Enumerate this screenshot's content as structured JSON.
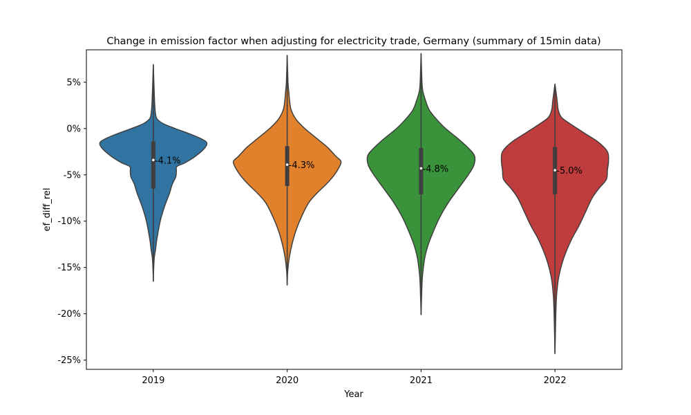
{
  "chart_data": {
    "type": "violin",
    "title": "Change in emission factor when adjusting for electricity trade, Germany (summary of 15min data)",
    "xlabel": "Year",
    "ylabel": "ef_diff_rel",
    "ylim": [
      -26,
      8.5
    ],
    "yticks": [
      5,
      0,
      -5,
      -10,
      -15,
      -20,
      -25
    ],
    "ytick_labels": [
      "5%",
      "0%",
      "-5%",
      "-10%",
      "-15%",
      "-20%",
      "-25%"
    ],
    "categories": [
      "2019",
      "2020",
      "2021",
      "2022"
    ],
    "violins": [
      {
        "category": "2019",
        "color": "#3274a1",
        "min": -16.5,
        "max": 6.9,
        "q1": -6.5,
        "q3": -1.4,
        "median": -3.4,
        "mean_label": "-4.1%",
        "density": [
          [
            -16.5,
            0.0
          ],
          [
            -15.5,
            0.4
          ],
          [
            -14,
            1.6
          ],
          [
            -13,
            4
          ],
          [
            -12,
            6
          ],
          [
            -10,
            12
          ],
          [
            -8.5,
            19
          ],
          [
            -7,
            28
          ],
          [
            -6,
            33
          ],
          [
            -5.2,
            39
          ],
          [
            -4.6,
            40
          ],
          [
            -4.1,
            41
          ],
          [
            -3.7,
            55
          ],
          [
            -3,
            73
          ],
          [
            -2.2,
            88
          ],
          [
            -1.6,
            93
          ],
          [
            -1.2,
            86
          ],
          [
            -0.6,
            64
          ],
          [
            0,
            38
          ],
          [
            0.5,
            18
          ],
          [
            1,
            7
          ],
          [
            1.5,
            4
          ],
          [
            2.5,
            2.5
          ],
          [
            4,
            1.5
          ],
          [
            6.9,
            0.0
          ]
        ]
      },
      {
        "category": "2020",
        "color": "#e1812c",
        "min": -16.9,
        "max": 7.9,
        "q1": -6.2,
        "q3": -1.9,
        "median": -3.9,
        "mean_label": "-4.3%",
        "density": [
          [
            -16.9,
            0.0
          ],
          [
            -15.5,
            0.6
          ],
          [
            -14,
            2.5
          ],
          [
            -12.5,
            6
          ],
          [
            -11,
            11
          ],
          [
            -9.5,
            18
          ],
          [
            -8,
            27
          ],
          [
            -7,
            37
          ],
          [
            -6,
            49
          ],
          [
            -5,
            59
          ],
          [
            -4,
            66
          ],
          [
            -3.5,
            67
          ],
          [
            -3,
            61
          ],
          [
            -2,
            50
          ],
          [
            -1,
            36
          ],
          [
            0,
            22
          ],
          [
            1,
            11
          ],
          [
            2,
            5
          ],
          [
            3,
            3
          ],
          [
            4,
            2
          ],
          [
            5,
            1
          ],
          [
            7.9,
            0.0
          ]
        ]
      },
      {
        "category": "2021",
        "color": "#3a923a",
        "min": -20.1,
        "max": 8.1,
        "q1": -7.1,
        "q3": -2.1,
        "median": -4.3,
        "mean_label": "-4.8%",
        "density": [
          [
            -20.1,
            0.0
          ],
          [
            -18,
            0.6
          ],
          [
            -16,
            1.5
          ],
          [
            -14,
            4
          ],
          [
            -12.5,
            8
          ],
          [
            -11,
            14
          ],
          [
            -9.5,
            21
          ],
          [
            -8,
            30
          ],
          [
            -6.5,
            41
          ],
          [
            -5,
            52
          ],
          [
            -4,
            58
          ],
          [
            -3,
            59
          ],
          [
            -2.2,
            53
          ],
          [
            -1.2,
            42
          ],
          [
            0,
            27
          ],
          [
            1,
            17
          ],
          [
            2,
            9
          ],
          [
            3,
            5
          ],
          [
            4,
            2
          ],
          [
            5,
            1
          ],
          [
            8.1,
            0.0
          ]
        ]
      },
      {
        "category": "2022",
        "color": "#c03d3e",
        "min": -24.3,
        "max": 4.8,
        "q1": -7.1,
        "q3": -2.0,
        "median": -4.5,
        "mean_label": "-5.0%",
        "density": [
          [
            -24.3,
            0.0
          ],
          [
            -22,
            0.4
          ],
          [
            -20,
            0.8
          ],
          [
            -18,
            1.5
          ],
          [
            -16,
            3.5
          ],
          [
            -14,
            8
          ],
          [
            -12,
            15
          ],
          [
            -10.5,
            22
          ],
          [
            -9,
            28
          ],
          [
            -7.5,
            34
          ],
          [
            -6.5,
            40
          ],
          [
            -5.5,
            47
          ],
          [
            -4.5,
            48
          ],
          [
            -3.5,
            49
          ],
          [
            -2.5,
            48
          ],
          [
            -1.5,
            40
          ],
          [
            -0.5,
            27
          ],
          [
            0.5,
            14
          ],
          [
            1.2,
            6
          ],
          [
            2,
            3
          ],
          [
            3,
            2
          ],
          [
            4.8,
            0.0
          ]
        ]
      }
    ]
  }
}
